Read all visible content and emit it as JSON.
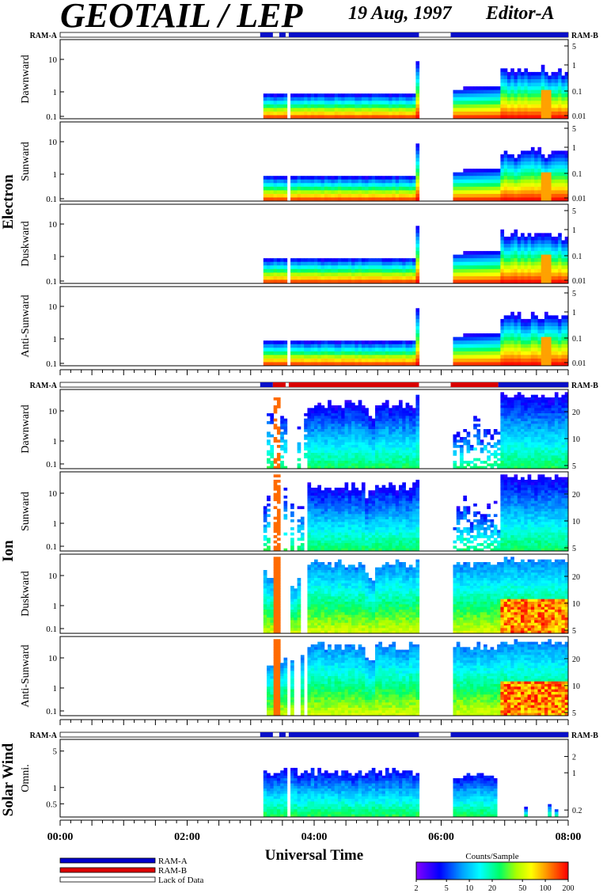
{
  "header": {
    "title": "GEOTAIL / LEP",
    "date": "19 Aug, 1997",
    "editor": "Editor-A"
  },
  "groups": {
    "electron": "Electron",
    "ion": "Ion",
    "solar_wind": "Solar Wind"
  },
  "ram_labels": {
    "left": "RAM-A",
    "right": "RAM-B"
  },
  "xaxis": {
    "label": "Universal Time",
    "ticks": [
      "00:00",
      "02:00",
      "04:00",
      "06:00",
      "08:00"
    ]
  },
  "legend": {
    "items": [
      {
        "label": "RAM-A",
        "color": "#0000cc"
      },
      {
        "label": "RAM-B",
        "color": "#dd0000"
      },
      {
        "label": "Lack of Data",
        "color": "#ffffff"
      }
    ]
  },
  "colorbar": {
    "title": "Counts/Sample",
    "ticks": [
      "2",
      "5",
      "10",
      "20",
      "50",
      "100",
      "200"
    ]
  },
  "chart_data": [
    {
      "type": "heatmap",
      "group": "Electron",
      "ylabel": "Dawnward",
      "left_ticks": [
        "10",
        "1",
        "0.1"
      ],
      "right_ticks": [
        "5",
        "1",
        "0.1",
        "0.01"
      ],
      "x_range_hours": [
        0,
        8
      ],
      "data_start_h": 3.15,
      "gap_h": [
        5.65,
        6.15
      ],
      "ram_bar": [
        {
          "from": 3.15,
          "to": 5.65,
          "mode": "RAM-A"
        },
        {
          "from": 6.15,
          "to": 8.0,
          "mode": "RAM-A"
        }
      ]
    },
    {
      "type": "heatmap",
      "group": "Electron",
      "ylabel": "Sunward",
      "left_ticks": [
        "10",
        "1",
        "0.1"
      ],
      "right_ticks": [
        "5",
        "1",
        "0.1",
        "0.01"
      ],
      "x_range_hours": [
        0,
        8
      ],
      "data_start_h": 3.15,
      "gap_h": [
        5.65,
        6.15
      ]
    },
    {
      "type": "heatmap",
      "group": "Electron",
      "ylabel": "Duskward",
      "left_ticks": [
        "10",
        "1",
        "0.1"
      ],
      "right_ticks": [
        "5",
        "1",
        "0.1",
        "0.01"
      ],
      "x_range_hours": [
        0,
        8
      ],
      "data_start_h": 3.15,
      "gap_h": [
        5.65,
        6.15
      ]
    },
    {
      "type": "heatmap",
      "group": "Electron",
      "ylabel": "Anti-Sunward",
      "left_ticks": [
        "10",
        "1",
        "0.1"
      ],
      "right_ticks": [
        "5",
        "1",
        "0.1",
        "0.01"
      ],
      "x_range_hours": [
        0,
        8
      ],
      "data_start_h": 3.15,
      "gap_h": [
        5.65,
        6.15
      ]
    },
    {
      "type": "heatmap",
      "group": "Ion",
      "ylabel": "Dawnward",
      "left_ticks": [
        "10",
        "1",
        "0.1"
      ],
      "right_ticks": [
        "20",
        "10",
        "5"
      ],
      "x_range_hours": [
        0,
        8
      ],
      "data_start_h": 3.15,
      "gap_h": [
        5.65,
        6.15
      ],
      "ram_bar": [
        {
          "from": 3.15,
          "to": 3.55,
          "mode": "RAM-A"
        },
        {
          "from": 3.55,
          "to": 5.65,
          "mode": "RAM-B"
        },
        {
          "from": 6.15,
          "to": 6.9,
          "mode": "RAM-B"
        },
        {
          "from": 6.9,
          "to": 8.0,
          "mode": "RAM-A"
        }
      ]
    },
    {
      "type": "heatmap",
      "group": "Ion",
      "ylabel": "Sunward",
      "left_ticks": [
        "10",
        "1",
        "0.1"
      ],
      "right_ticks": [
        "20",
        "10",
        "5"
      ],
      "x_range_hours": [
        0,
        8
      ],
      "data_start_h": 3.15,
      "gap_h": [
        5.65,
        6.15
      ]
    },
    {
      "type": "heatmap",
      "group": "Ion",
      "ylabel": "Duskward",
      "left_ticks": [
        "10",
        "1",
        "0.1"
      ],
      "right_ticks": [
        "20",
        "10",
        "5"
      ],
      "x_range_hours": [
        0,
        8
      ],
      "data_start_h": 3.15,
      "gap_h": [
        5.65,
        6.15
      ]
    },
    {
      "type": "heatmap",
      "group": "Ion",
      "ylabel": "Anti-Sunward",
      "left_ticks": [
        "10",
        "1",
        "0.1"
      ],
      "right_ticks": [
        "20",
        "10",
        "5"
      ],
      "x_range_hours": [
        0,
        8
      ],
      "data_start_h": 3.15,
      "gap_h": [
        5.65,
        6.15
      ]
    },
    {
      "type": "heatmap",
      "group": "Solar Wind",
      "ylabel": "Omni.",
      "left_ticks": [
        "5",
        "1",
        "0.5"
      ],
      "right_ticks": [
        "2",
        "1",
        "0.2"
      ],
      "x_range_hours": [
        0,
        8
      ],
      "data_start_h": 3.15,
      "gap_h": [
        5.65,
        6.15
      ],
      "ram_bar": [
        {
          "from": 3.15,
          "to": 5.65,
          "mode": "RAM-A"
        },
        {
          "from": 6.15,
          "to": 8.0,
          "mode": "RAM-A"
        }
      ]
    }
  ]
}
